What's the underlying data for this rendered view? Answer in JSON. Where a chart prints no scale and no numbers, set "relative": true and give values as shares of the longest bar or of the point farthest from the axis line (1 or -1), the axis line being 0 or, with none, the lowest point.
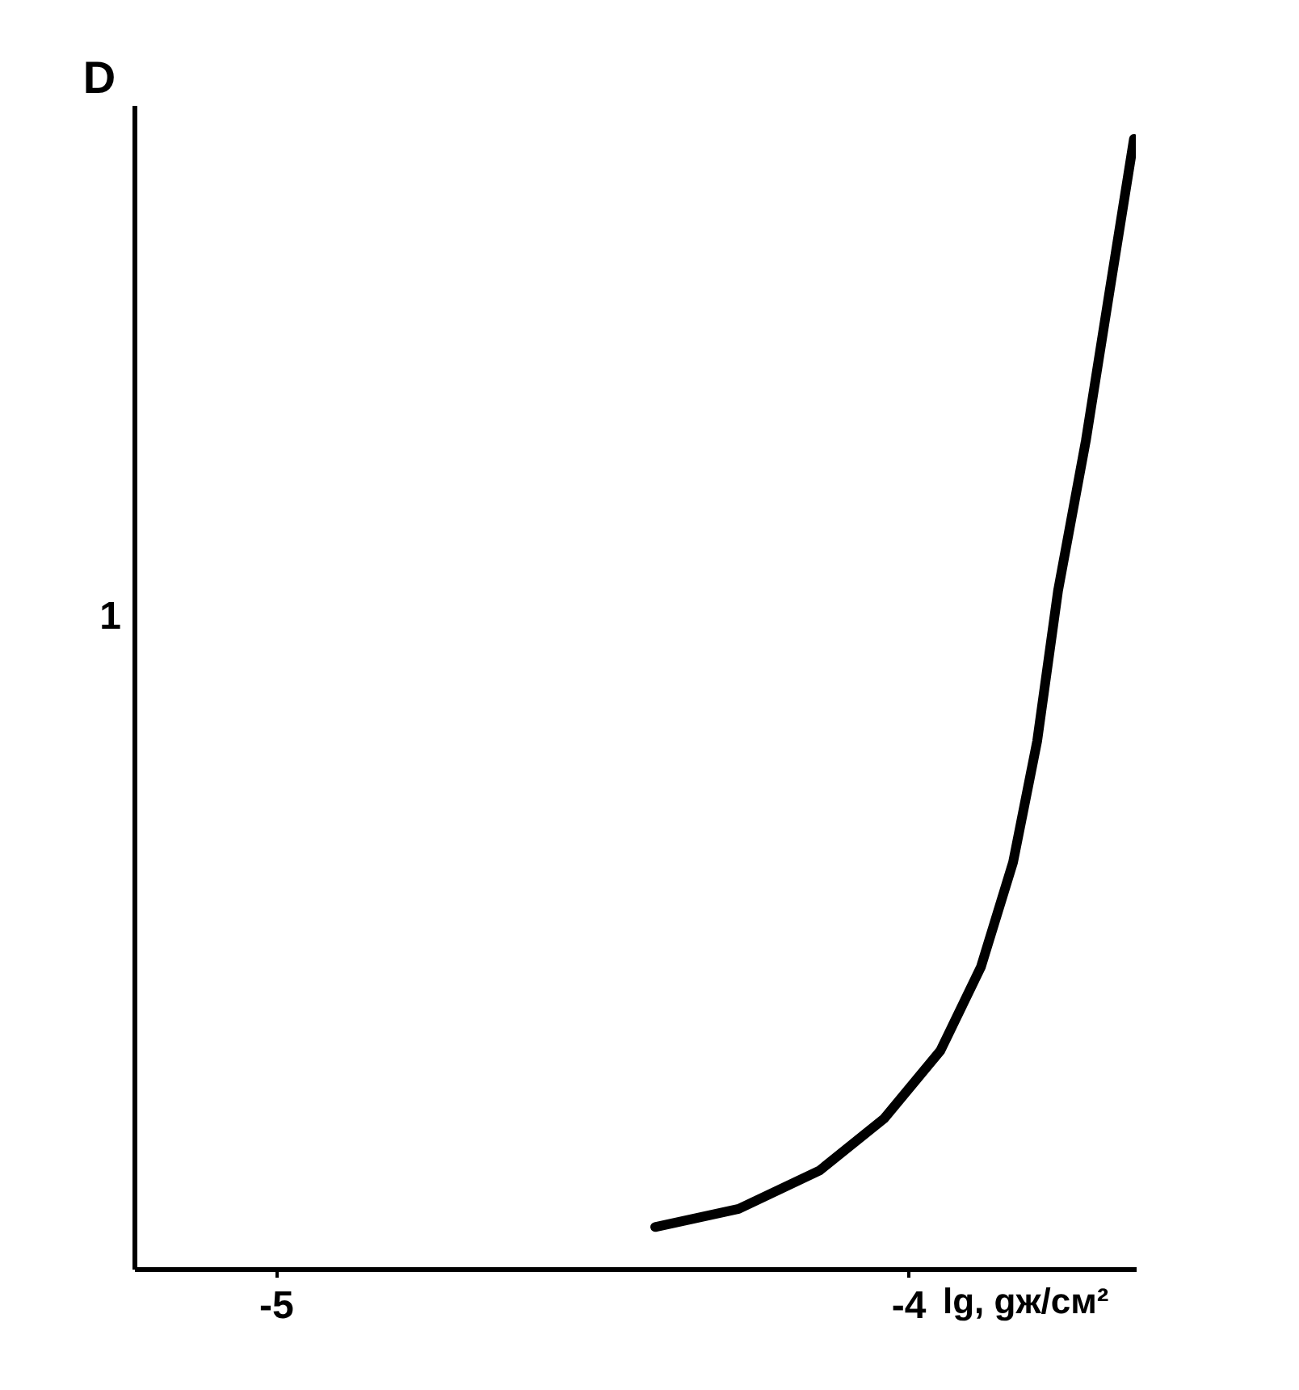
{
  "chart_data": {
    "type": "line",
    "xlabel": "lg, gж/см²",
    "ylabel": "D",
    "relative": true,
    "annotations": [
      "1"
    ],
    "x": [
      -4.4,
      -4.268,
      -4.14,
      -4.038,
      -3.949,
      -3.885,
      -3.834,
      -3.796,
      -3.763,
      -3.719,
      -3.681,
      -3.643
    ],
    "series": [
      {
        "color": "#000000",
        "values": [
          0.037,
          0.053,
          0.087,
          0.133,
          0.193,
          0.267,
          0.36,
          0.467,
          0.6,
          0.733,
          0.867,
          1.0
        ]
      }
    ],
    "xlim": [
      -5.224,
      -3.64
    ],
    "xticks": [
      -5,
      -4
    ],
    "grid": false,
    "marker": "none",
    "line_style": "solid"
  }
}
